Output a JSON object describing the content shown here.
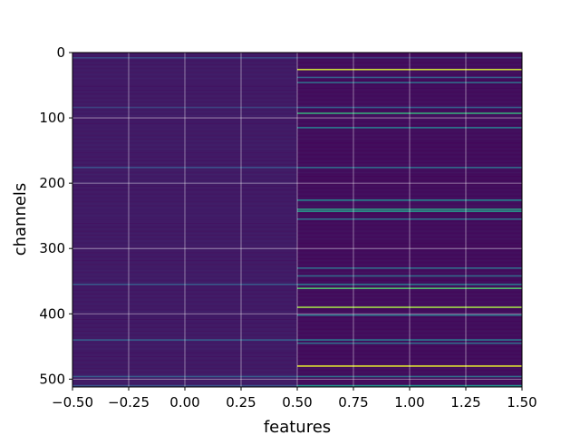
{
  "chart_data": {
    "type": "heatmap",
    "title": "",
    "xlabel": "features",
    "ylabel": "channels",
    "colormap": "viridis",
    "xlim": [
      -0.5,
      1.5
    ],
    "ylim": [
      512,
      0
    ],
    "y_inverted": true,
    "grid": true,
    "columns": [
      0,
      1
    ],
    "rows": 512,
    "xticks": [
      "−0.50",
      "−0.25",
      "0.00",
      "0.25",
      "0.50",
      "0.75",
      "1.00",
      "1.25",
      "1.50"
    ],
    "yticks": [
      "0",
      "100",
      "200",
      "300",
      "400",
      "500"
    ],
    "column_0_background": 0.08,
    "column_1_background": 0.04,
    "highlighted_rows": [
      {
        "channel": 8,
        "col0": 0.22,
        "col1": 0.18
      },
      {
        "channel": 26,
        "col0": 0.08,
        "col1": 0.92
      },
      {
        "channel": 38,
        "col0": 0.08,
        "col1": 0.3
      },
      {
        "channel": 46,
        "col0": 0.08,
        "col1": 0.35
      },
      {
        "channel": 84,
        "col0": 0.2,
        "col1": 0.3
      },
      {
        "channel": 93,
        "col0": 0.08,
        "col1": 0.6
      },
      {
        "channel": 115,
        "col0": 0.08,
        "col1": 0.4
      },
      {
        "channel": 176,
        "col0": 0.25,
        "col1": 0.35
      },
      {
        "channel": 226,
        "col0": 0.08,
        "col1": 0.45
      },
      {
        "channel": 240,
        "col0": 0.08,
        "col1": 0.55
      },
      {
        "channel": 243,
        "col0": 0.08,
        "col1": 0.52
      },
      {
        "channel": 255,
        "col0": 0.08,
        "col1": 0.35
      },
      {
        "channel": 330,
        "col0": 0.08,
        "col1": 0.35
      },
      {
        "channel": 342,
        "col0": 0.08,
        "col1": 0.35
      },
      {
        "channel": 355,
        "col0": 0.28,
        "col1": 0.4
      },
      {
        "channel": 361,
        "col0": 0.08,
        "col1": 0.7
      },
      {
        "channel": 390,
        "col0": 0.08,
        "col1": 0.85
      },
      {
        "channel": 402,
        "col0": 0.08,
        "col1": 0.4
      },
      {
        "channel": 440,
        "col0": 0.3,
        "col1": 0.4
      },
      {
        "channel": 445,
        "col0": 0.08,
        "col1": 0.35
      },
      {
        "channel": 480,
        "col0": 0.08,
        "col1": 0.95
      },
      {
        "channel": 496,
        "col0": 0.28,
        "col1": 0.35
      },
      {
        "channel": 510,
        "col0": 0.25,
        "col1": 0.5
      }
    ]
  }
}
